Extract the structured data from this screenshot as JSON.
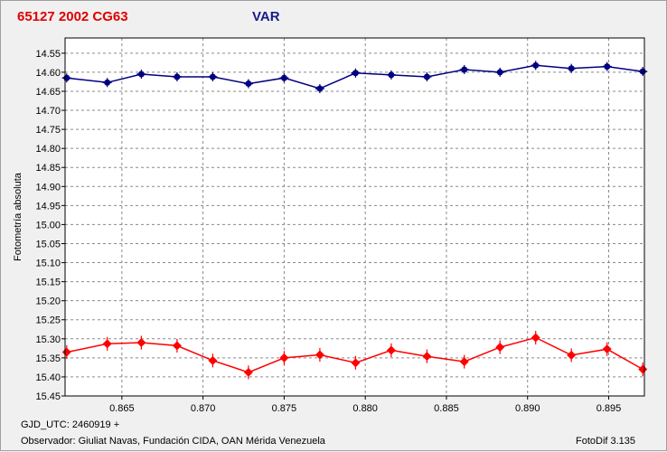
{
  "header": {
    "object_title": "65127 2002 CG63",
    "series_title": "VAR"
  },
  "footer": {
    "gjd_label": "GJD_UTC: 2460919 +",
    "observer": "Observador: Giuliat Navas, Fundación CIDA, OAN Mérida Venezuela",
    "software": "FotoDif 3.135"
  },
  "chart_data": {
    "type": "line",
    "ylabel": "Fotometría absoluta",
    "xlabel": "",
    "xlim": [
      0.8615,
      0.8972
    ],
    "ylim": [
      14.51,
      15.45
    ],
    "y_inverted": true,
    "grid": true,
    "x_ticks": [
      "0.865",
      "0.870",
      "0.875",
      "0.880",
      "0.885",
      "0.890",
      "0.895"
    ],
    "y_ticks": [
      "14.55",
      "14.60",
      "14.65",
      "14.70",
      "14.75",
      "14.80",
      "14.85",
      "14.90",
      "14.95",
      "15.00",
      "15.05",
      "15.10",
      "15.15",
      "15.20",
      "15.25",
      "15.30",
      "15.35",
      "15.40",
      "15.45"
    ],
    "series": [
      {
        "color": "#000080",
        "marker": "cross-circle",
        "x": [
          0.8616,
          0.8641,
          0.8662,
          0.8684,
          0.8706,
          0.8728,
          0.875,
          0.8772,
          0.8794,
          0.8816,
          0.8838,
          0.8861,
          0.8883,
          0.8905,
          0.8927,
          0.8949,
          0.8971
        ],
        "y": [
          14.615,
          14.627,
          14.605,
          14.612,
          14.612,
          14.63,
          14.615,
          14.643,
          14.602,
          14.607,
          14.612,
          14.593,
          14.6,
          14.582,
          14.59,
          14.585,
          14.598
        ],
        "err": [
          0.012,
          0.012,
          0.012,
          0.012,
          0.012,
          0.012,
          0.012,
          0.012,
          0.012,
          0.012,
          0.012,
          0.012,
          0.012,
          0.012,
          0.012,
          0.012,
          0.012
        ]
      },
      {
        "color": "#ff0000",
        "marker": "diamond",
        "x": [
          0.8616,
          0.8641,
          0.8662,
          0.8684,
          0.8706,
          0.8728,
          0.875,
          0.8772,
          0.8794,
          0.8816,
          0.8838,
          0.8861,
          0.8883,
          0.8905,
          0.8927,
          0.8949,
          0.8971
        ],
        "y": [
          15.335,
          15.313,
          15.31,
          15.318,
          15.357,
          15.388,
          15.35,
          15.342,
          15.363,
          15.33,
          15.346,
          15.36,
          15.322,
          15.297,
          15.343,
          15.327,
          15.38
        ],
        "err": [
          0.018,
          0.018,
          0.018,
          0.018,
          0.018,
          0.018,
          0.018,
          0.018,
          0.018,
          0.018,
          0.018,
          0.018,
          0.018,
          0.018,
          0.018,
          0.018,
          0.018
        ]
      }
    ]
  }
}
